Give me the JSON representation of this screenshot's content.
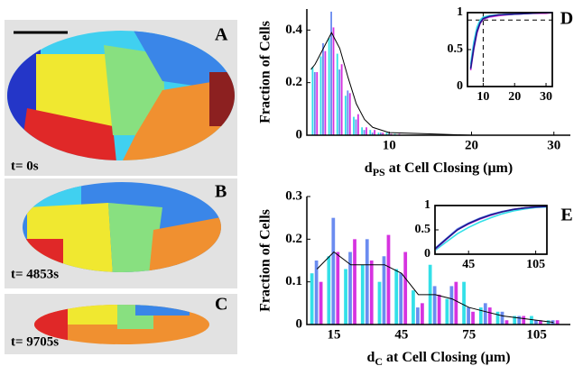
{
  "panels": [
    {
      "label": "A",
      "time": "t= 0s"
    },
    {
      "label": "B",
      "time": "t= 4853s"
    },
    {
      "label": "C",
      "time": "t= 9705s"
    }
  ],
  "chart_data": [
    {
      "type": "bar",
      "panel_label": "D",
      "y_label": "Fraction of Cells",
      "x_label": {
        "main": "d",
        "sub": "PS",
        "rest": " at Cell Closing (μm)"
      },
      "xlim": [
        0,
        32
      ],
      "xticks": [
        10,
        20,
        30
      ],
      "ylim": [
        0,
        0.48
      ],
      "yticks": [
        0,
        0.2,
        0.4
      ],
      "x": [
        1,
        2,
        3,
        4,
        5,
        6,
        7,
        8,
        9,
        10,
        11,
        12
      ],
      "series": [
        {
          "color": "#33e0e8",
          "values": [
            0.26,
            0.3,
            0.37,
            0.31,
            0.15,
            0.07,
            0.03,
            0.02,
            0.01,
            0.01,
            0.005,
            0
          ]
        },
        {
          "color": "#6b8cf0",
          "values": [
            0.24,
            0.35,
            0.47,
            0.25,
            0.17,
            0.06,
            0.02,
            0.01,
            0.01,
            0.005,
            0,
            0
          ]
        },
        {
          "color": "#d633e0",
          "values": [
            0.24,
            0.32,
            0.41,
            0.27,
            0.16,
            0.08,
            0.03,
            0.02,
            0.01,
            0.005,
            0.005,
            0
          ]
        }
      ],
      "trend": {
        "color": "#000000",
        "x": [
          0.5,
          1,
          2,
          3,
          4,
          5,
          6,
          7,
          8,
          10,
          15,
          20,
          25,
          32
        ],
        "values": [
          0.25,
          0.27,
          0.33,
          0.39,
          0.33,
          0.22,
          0.12,
          0.06,
          0.03,
          0.01,
          0.005,
          0,
          0,
          0
        ]
      }
    },
    {
      "type": "line",
      "frame": true,
      "xlim": [
        5,
        32
      ],
      "xticks": [
        10,
        20,
        30
      ],
      "ylim": [
        0,
        1
      ],
      "yticks": [
        0,
        0.5,
        1
      ],
      "hlines": [
        0.9
      ],
      "vlines": [
        10
      ],
      "x": [
        6,
        7,
        8,
        9,
        10,
        12,
        15,
        20,
        25,
        30,
        32
      ],
      "series": [
        {
          "color": "#33e0e8",
          "values": [
            0.3,
            0.6,
            0.8,
            0.9,
            0.94,
            0.96,
            0.97,
            0.98,
            0.99,
            1,
            1
          ]
        },
        {
          "color": "#6b8cf0",
          "values": [
            0.25,
            0.55,
            0.75,
            0.87,
            0.92,
            0.95,
            0.97,
            0.98,
            0.99,
            1,
            1
          ]
        },
        {
          "color": "#d633e0",
          "values": [
            0.22,
            0.5,
            0.72,
            0.85,
            0.91,
            0.94,
            0.96,
            0.98,
            0.99,
            0.99,
            1
          ]
        },
        {
          "color": "#1a1a8c",
          "values": [
            0.24,
            0.52,
            0.74,
            0.86,
            0.92,
            0.95,
            0.97,
            0.98,
            0.99,
            1,
            1
          ]
        }
      ]
    },
    {
      "type": "bar",
      "panel_label": "E",
      "y_label": "Fraction of Cells",
      "x_label": {
        "main": "d",
        "sub": "C",
        "rest": " at Cell Closing (μm)"
      },
      "xlim": [
        3,
        120
      ],
      "xticks": [
        15,
        45,
        75,
        105
      ],
      "ylim": [
        0,
        0.3
      ],
      "yticks": [
        0,
        0.1,
        0.2,
        0.3
      ],
      "x": [
        7.5,
        15,
        22.5,
        30,
        37.5,
        45,
        52.5,
        60,
        67.5,
        75,
        82.5,
        90,
        97.5,
        105,
        112.5
      ],
      "series": [
        {
          "color": "#33e0e8",
          "values": [
            0.12,
            0.16,
            0.13,
            0.14,
            0.1,
            0.13,
            0.08,
            0.14,
            0.06,
            0.1,
            0.04,
            0.03,
            0.02,
            0.02,
            0.01
          ]
        },
        {
          "color": "#6b8cf0",
          "values": [
            0.15,
            0.25,
            0.17,
            0.2,
            0.16,
            0.12,
            0.04,
            0.09,
            0.09,
            0.04,
            0.05,
            0.03,
            0.02,
            0.01,
            0.01
          ]
        },
        {
          "color": "#d633e0",
          "values": [
            0.1,
            0.17,
            0.2,
            0.15,
            0.21,
            0.17,
            0.05,
            0.07,
            0.1,
            0.03,
            0.04,
            0.01,
            0.02,
            0.01,
            0.01
          ]
        }
      ],
      "trend": {
        "color": "#000000",
        "x": [
          7.5,
          15,
          22.5,
          30,
          37.5,
          45,
          52.5,
          60,
          67.5,
          75,
          82.5,
          90,
          97.5,
          105,
          112.5
        ],
        "values": [
          0.13,
          0.17,
          0.14,
          0.14,
          0.14,
          0.12,
          0.07,
          0.07,
          0.06,
          0.04,
          0.03,
          0.02,
          0.015,
          0.01,
          0.005
        ]
      }
    },
    {
      "type": "line",
      "frame": true,
      "xlim": [
        15,
        115
      ],
      "xticks": [
        45,
        105
      ],
      "ylim": [
        0,
        1
      ],
      "yticks": [
        0,
        0.5,
        1
      ],
      "hlines": [
        1
      ],
      "vlines": [],
      "x": [
        15,
        25,
        35,
        45,
        55,
        65,
        75,
        85,
        95,
        105,
        115
      ],
      "series": [
        {
          "color": "#33e0e8",
          "values": [
            0.08,
            0.25,
            0.42,
            0.55,
            0.66,
            0.75,
            0.83,
            0.89,
            0.93,
            0.96,
            0.97
          ]
        },
        {
          "color": "#6b8cf0",
          "values": [
            0.12,
            0.32,
            0.52,
            0.64,
            0.74,
            0.82,
            0.88,
            0.92,
            0.95,
            0.97,
            0.98
          ]
        },
        {
          "color": "#d633e0",
          "values": [
            0.1,
            0.3,
            0.5,
            0.62,
            0.72,
            0.8,
            0.87,
            0.92,
            0.95,
            0.97,
            0.98
          ]
        },
        {
          "color": "#1a1a8c",
          "values": [
            0.11,
            0.31,
            0.5,
            0.63,
            0.73,
            0.81,
            0.87,
            0.92,
            0.95,
            0.97,
            0.98
          ]
        }
      ]
    }
  ]
}
